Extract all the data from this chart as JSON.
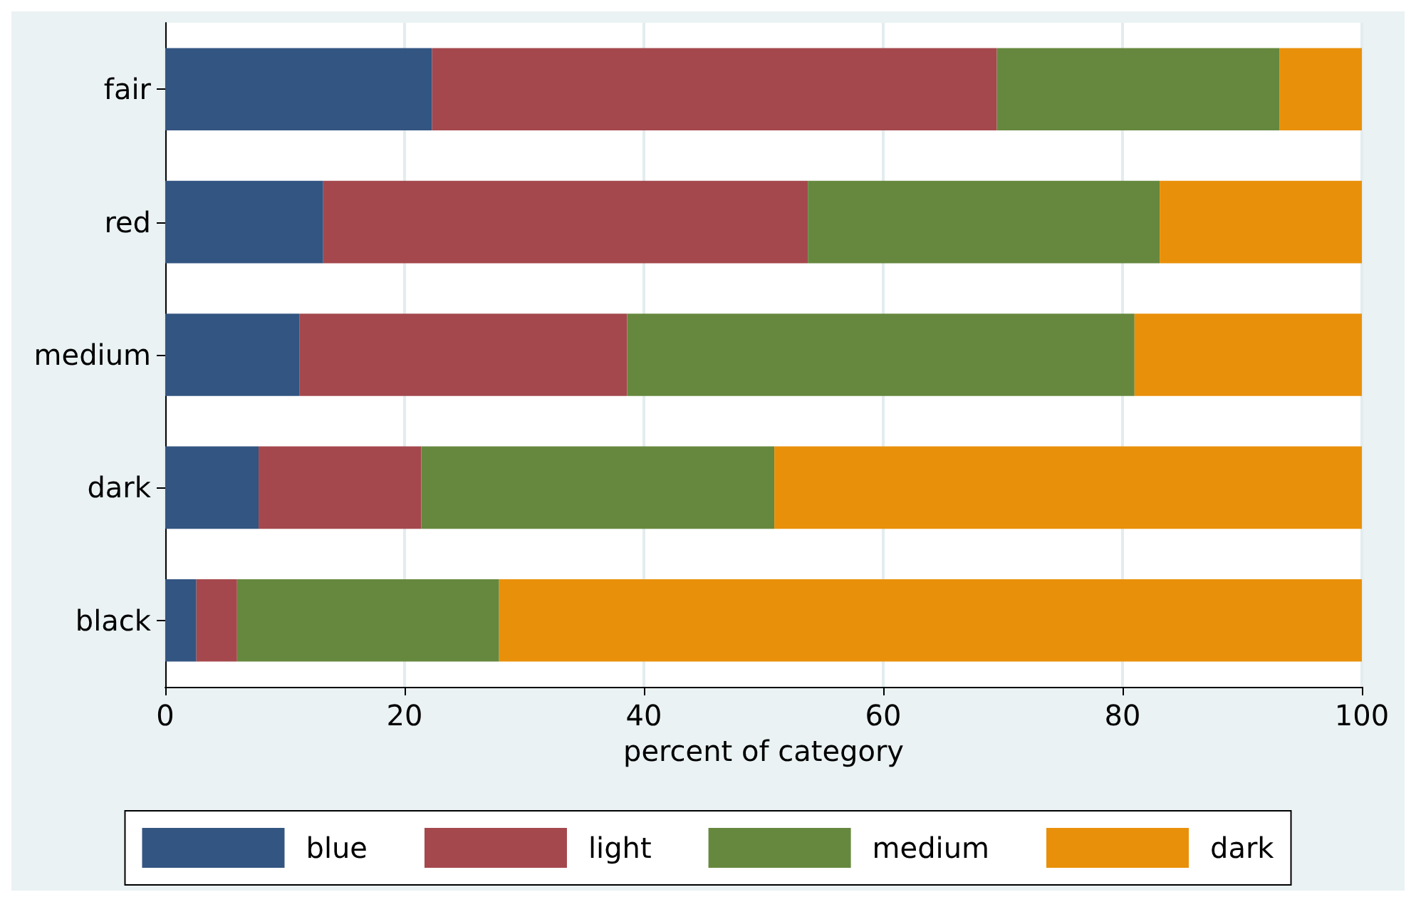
{
  "chart_data": {
    "type": "bar",
    "orientation": "horizontal",
    "stacked": true,
    "xlabel": "percent of category",
    "categories": [
      "fair",
      "red",
      "medium",
      "dark",
      "black"
    ],
    "series": [
      {
        "name": "blue",
        "color": "#335581",
        "values": [
          22.3,
          13.2,
          11.2,
          7.8,
          2.6
        ]
      },
      {
        "name": "light",
        "color": "#a4484d",
        "values": [
          47.2,
          40.5,
          27.4,
          13.6,
          3.4
        ]
      },
      {
        "name": "medium",
        "color": "#66883e",
        "values": [
          23.6,
          29.4,
          42.4,
          29.5,
          21.9
        ]
      },
      {
        "name": "dark",
        "color": "#e9900a",
        "values": [
          6.9,
          16.9,
          19.0,
          49.1,
          72.1
        ]
      }
    ],
    "xlim": [
      0,
      100
    ],
    "xticks": [
      0,
      20,
      40,
      60,
      80,
      100
    ],
    "grid": "x",
    "legend": "bottom"
  }
}
